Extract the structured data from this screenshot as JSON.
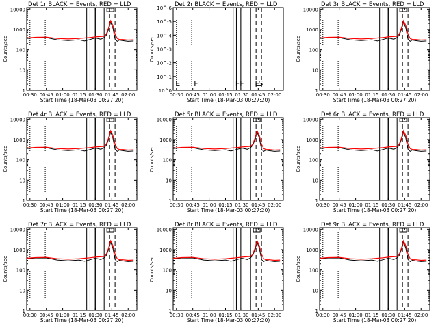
{
  "figure": {
    "xlabel": "Start Time (18-Mar-03 00:27:20)",
    "ylabel": "Counts/sec",
    "x_tick_labels": [
      "00:30",
      "00:45",
      "01:00",
      "01:15",
      "01:30",
      "01:45",
      "02:00"
    ],
    "log_ytick_labels": [
      "1",
      "10",
      "100",
      "1000",
      "10000"
    ],
    "det2_ytick_labels": [
      "10^0",
      "10^-1",
      "10^-2",
      "10^-3",
      "10^-4",
      "10^-5",
      "10^-6"
    ],
    "det2_flags": [
      "E",
      "F",
      "F",
      "F",
      "E",
      "S"
    ],
    "colors": {
      "events": "#000000",
      "lld": "#ff0000",
      "axes": "#000000"
    }
  },
  "panels": [
    {
      "title": "Det 1r BLACK = Events, RED = LLD"
    },
    {
      "title": "Det 2r BLACK = Events, RED = LLD"
    },
    {
      "title": "Det 3r BLACK = Events, RED = LLD"
    },
    {
      "title": "Det 4r BLACK = Events, RED = LLD"
    },
    {
      "title": "Det 5r BLACK = Events, RED = LLD"
    },
    {
      "title": "Det 6r BLACK = Events, RED = LLD"
    },
    {
      "title": "Det 7r BLACK = Events, RED = LLD"
    },
    {
      "title": "Det 8r BLACK = Events, RED = LLD"
    },
    {
      "title": "Det 9r BLACK = Events, RED = LLD"
    }
  ],
  "chart_data": {
    "type": "line",
    "x_unit": "time (HH:MM, 18-Mar-03)",
    "x_range": [
      "00:27",
      "02:08"
    ],
    "y_scale": "log",
    "y_range": [
      1,
      12000
    ],
    "dotted_vlines": [
      "00:30",
      "00:44"
    ],
    "solid_vlines": [
      "01:22",
      "01:25",
      "01:29",
      "01:30",
      "01:38"
    ],
    "dashed_vlines": [
      "01:43",
      "01:48"
    ],
    "series": [
      {
        "name": "Events",
        "x": [
          "00:27",
          "00:35",
          "00:45",
          "00:55",
          "01:05",
          "01:15",
          "01:20",
          "01:25",
          "01:30",
          "01:35",
          "01:38",
          "01:40",
          "01:42",
          "01:44",
          "01:46",
          "01:48",
          "01:50",
          "01:52",
          "01:55",
          "02:00",
          "02:05"
        ],
        "values": [
          360,
          390,
          395,
          310,
          285,
          310,
          270,
          320,
          380,
          330,
          400,
          520,
          1000,
          2300,
          1200,
          330,
          260,
          300,
          280,
          260,
          270
        ]
      },
      {
        "name": "LLD",
        "x": [
          "00:27",
          "00:35",
          "00:45",
          "00:55",
          "01:05",
          "01:15",
          "01:20",
          "01:25",
          "01:30",
          "01:35",
          "01:38",
          "01:40",
          "01:42",
          "01:44",
          "01:46",
          "01:48",
          "01:50",
          "01:52",
          "01:55",
          "02:00",
          "02:05"
        ],
        "values": [
          380,
          410,
          420,
          360,
          340,
          360,
          380,
          400,
          430,
          450,
          460,
          600,
          1200,
          2700,
          1600,
          600,
          360,
          320,
          320,
          300,
          310
        ]
      }
    ],
    "det2_flag_times": [
      "00:29",
      "00:46",
      "01:24",
      "01:28",
      "01:42",
      "01:45"
    ]
  }
}
